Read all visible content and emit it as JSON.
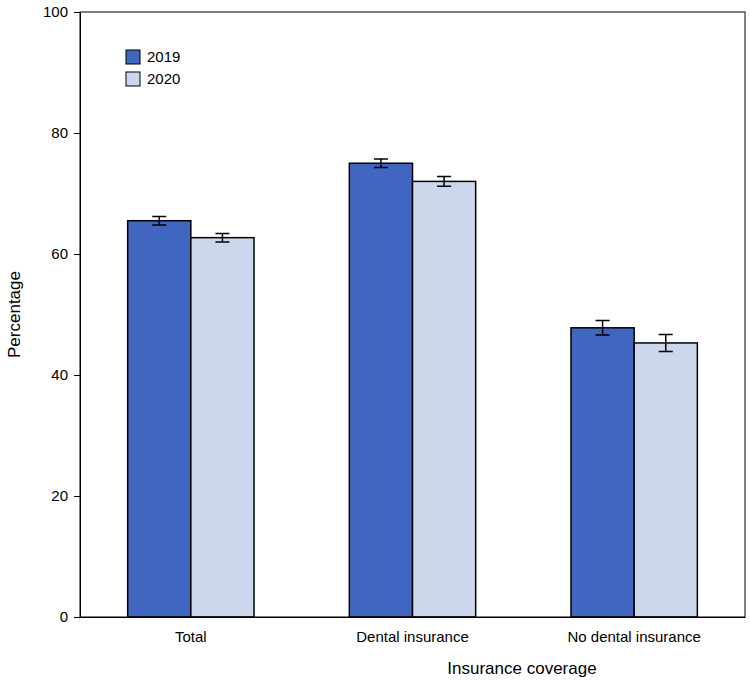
{
  "chart_data": {
    "type": "bar",
    "x_label": "Insurance coverage",
    "y_label": "Percentage",
    "categories": [
      "Total",
      "Dental insurance",
      "No dental insurance"
    ],
    "series": [
      {
        "name": "2019",
        "color": "#4166c0",
        "values": [
          65.5,
          75.0,
          47.8
        ],
        "errors": [
          0.7,
          0.7,
          1.2
        ]
      },
      {
        "name": "2020",
        "color": "#ccd7ee",
        "values": [
          62.7,
          72.0,
          45.3
        ],
        "errors": [
          0.7,
          0.8,
          1.4
        ]
      }
    ],
    "ylim": [
      0,
      100
    ],
    "yticks": [
      0,
      20,
      40,
      60,
      80,
      100
    ],
    "legend": "upper left",
    "grid": false
  }
}
